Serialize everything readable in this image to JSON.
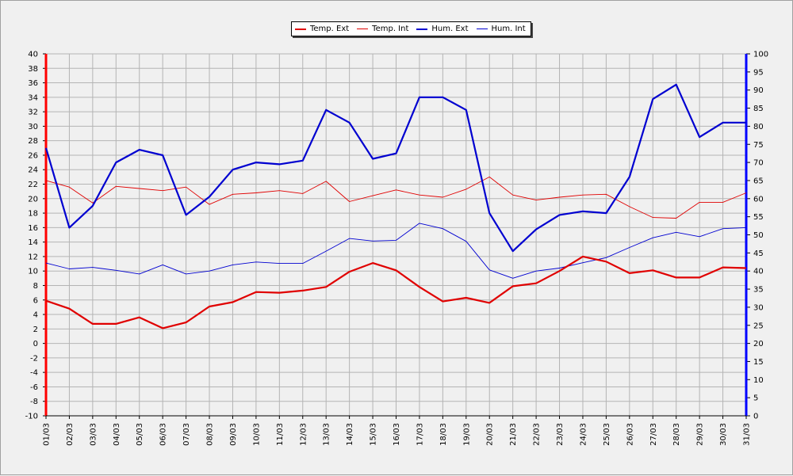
{
  "chart_data": {
    "type": "line",
    "categories": [
      "01/03",
      "02/03",
      "03/03",
      "04/03",
      "05/03",
      "06/03",
      "07/03",
      "08/03",
      "09/03",
      "10/03",
      "11/03",
      "12/03",
      "13/03",
      "14/03",
      "15/03",
      "16/03",
      "17/03",
      "18/03",
      "19/03",
      "20/03",
      "21/03",
      "22/03",
      "23/03",
      "24/03",
      "25/03",
      "26/03",
      "27/03",
      "28/03",
      "29/03",
      "30/03",
      "31/03"
    ],
    "y_left": {
      "min": -10,
      "max": 40,
      "step": 2,
      "color": "#ff0000"
    },
    "y_right": {
      "min": 0,
      "max": 100,
      "step": 5,
      "color": "#0000ff"
    },
    "grid": true,
    "legend_position": "top-center",
    "series": [
      {
        "name": "Temp. Ext",
        "axis": "left",
        "color": "#e00000",
        "width": 2.2,
        "values": [
          5.9,
          4.8,
          2.7,
          2.7,
          3.6,
          2.1,
          2.9,
          5.1,
          5.7,
          7.1,
          7.0,
          7.3,
          7.8,
          9.9,
          11.1,
          10.1,
          7.8,
          5.8,
          6.3,
          5.6,
          7.9,
          8.3,
          10.0,
          12.0,
          11.3,
          9.7,
          10.1,
          9.1,
          9.1,
          10.5,
          10.4
        ]
      },
      {
        "name": "Temp. Int",
        "axis": "left",
        "color": "#e00000",
        "width": 0.9,
        "values": [
          22.5,
          21.6,
          19.4,
          21.7,
          21.4,
          21.1,
          21.6,
          19.2,
          20.6,
          20.8,
          21.1,
          20.7,
          22.4,
          19.6,
          20.4,
          21.2,
          20.5,
          20.2,
          21.3,
          23.0,
          20.5,
          19.8,
          20.2,
          20.5,
          20.6,
          18.9,
          17.4,
          17.3,
          19.5,
          19.5,
          20.8
        ]
      },
      {
        "name": "Hum. Ext",
        "axis": "right",
        "color": "#0000d0",
        "width": 2.2,
        "values": [
          74,
          52,
          58,
          70,
          73.5,
          72,
          55.5,
          60.5,
          68,
          70,
          69.5,
          70.5,
          84.5,
          81,
          71,
          72.5,
          88,
          88,
          84.5,
          56,
          45.5,
          51.5,
          55.5,
          56.5,
          56,
          66,
          87.5,
          91.5,
          77,
          81,
          81
        ]
      },
      {
        "name": "Hum. Int",
        "axis": "right",
        "color": "#0000d0",
        "width": 0.9,
        "values": [
          42.2,
          40.6,
          41.0,
          40.2,
          39.2,
          41.7,
          39.2,
          40.0,
          41.7,
          42.5,
          42.1,
          42.1,
          45.5,
          49.0,
          48.3,
          48.5,
          53.2,
          51.7,
          48.2,
          40.3,
          38.0,
          40.0,
          40.8,
          42.3,
          43.7,
          46.5,
          49.2,
          50.7,
          49.5,
          51.7,
          52.0
        ]
      }
    ]
  }
}
